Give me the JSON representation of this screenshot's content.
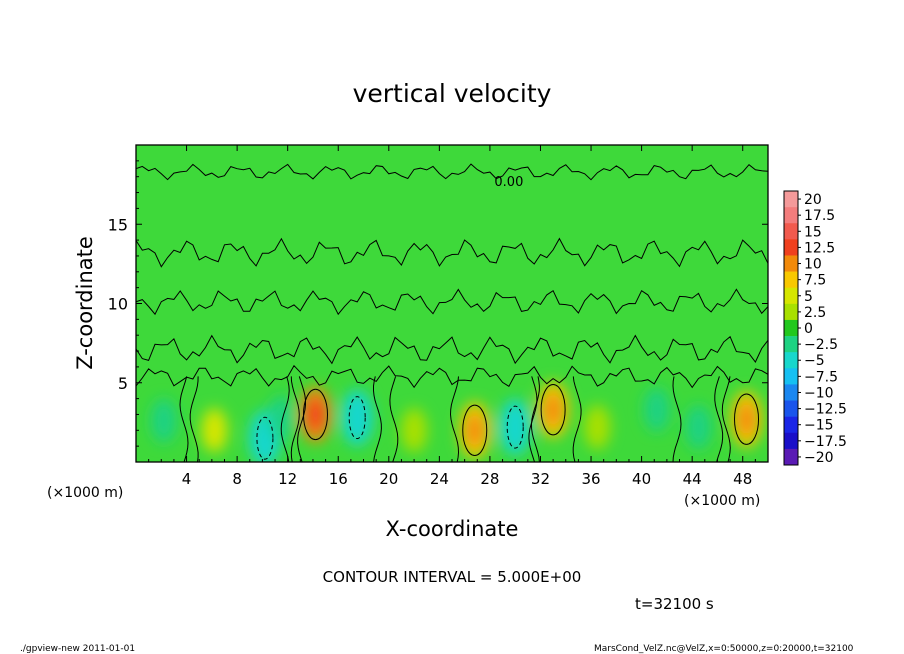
{
  "footer": {
    "left": "./gpview-new   2011-01-01",
    "right": "MarsCond_VelZ.nc@VelZ,x=0:50000,z=0:20000,t=32100"
  },
  "chart_data": {
    "type": "heatmap",
    "title": "vertical velocity",
    "xlabel": "X-coordinate",
    "ylabel": "Z-coordinate",
    "x_unit_label": "(×1000 m)",
    "x_ticks": [
      4,
      8,
      12,
      16,
      20,
      24,
      28,
      32,
      36,
      40,
      44,
      48
    ],
    "y_ticks": [
      5,
      10,
      15
    ],
    "xlim": [
      0,
      50
    ],
    "ylim": [
      0,
      20
    ],
    "contour_interval_label": "CONTOUR INTERVAL = 5.000E+00",
    "time_label": "t=32100 s",
    "contour_label": "0.00",
    "contour_label_pos": [
      29.5,
      17.4
    ],
    "colorbar": {
      "labels": [
        "20",
        "17.5",
        "15",
        "12.5",
        "10",
        "7.5",
        "5",
        "2.5",
        "0",
        "−2.5",
        "−5",
        "−7.5",
        "−10",
        "−12.5",
        "−15",
        "−17.5",
        "−20"
      ],
      "colors": [
        "#f59a9a",
        "#f47d7d",
        "#f25a4e",
        "#f0401e",
        "#f28a0a",
        "#f8c800",
        "#d6e600",
        "#a8e000",
        "#22c81e",
        "#1ed282",
        "#18d7cc",
        "#16c0f2",
        "#1a87f0",
        "#1a55ec",
        "#1a26e6",
        "#1a0fc8",
        "#5a1ab4"
      ]
    },
    "features": [
      {
        "x": 2.2,
        "z": 2.6,
        "value": -4
      },
      {
        "x": 6.2,
        "z": 2.0,
        "value": 3
      },
      {
        "x": 10.2,
        "z": 1.5,
        "value": -5
      },
      {
        "x": 11.5,
        "z": 2.8,
        "value": -3
      },
      {
        "x": 14.2,
        "z": 3.0,
        "value": 8
      },
      {
        "x": 17.5,
        "z": 2.8,
        "value": -5
      },
      {
        "x": 22.0,
        "z": 2.0,
        "value": 2
      },
      {
        "x": 26.8,
        "z": 2.0,
        "value": 7
      },
      {
        "x": 30.0,
        "z": 2.2,
        "value": -5
      },
      {
        "x": 33.0,
        "z": 3.3,
        "value": 7
      },
      {
        "x": 36.5,
        "z": 2.2,
        "value": 2
      },
      {
        "x": 41.2,
        "z": 3.3,
        "value": -4
      },
      {
        "x": 44.5,
        "z": 2.2,
        "value": -4
      },
      {
        "x": 48.3,
        "z": 2.7,
        "value": 7
      }
    ]
  }
}
